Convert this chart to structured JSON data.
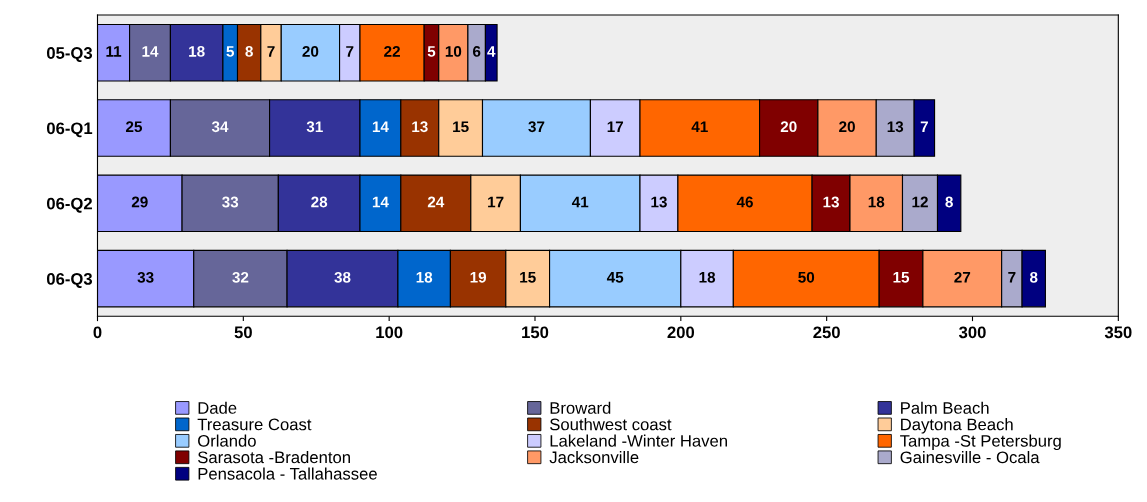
{
  "chart_data": {
    "type": "bar",
    "orientation": "horizontal",
    "stacked": true,
    "data_labels": true,
    "legend": "bottom",
    "grid": false,
    "categories": [
      "05-Q3",
      "06-Q1",
      "06-Q2",
      "06-Q3"
    ],
    "xlim": [
      0,
      350
    ],
    "xticks": [
      0,
      50,
      100,
      150,
      200,
      250,
      300,
      350
    ],
    "series": [
      {
        "name": "Dade",
        "color": "#9999ff",
        "values": [
          11,
          25,
          29,
          33
        ]
      },
      {
        "name": "Broward",
        "color": "#666699",
        "values": [
          14,
          34,
          33,
          32
        ]
      },
      {
        "name": "Palm Beach",
        "color": "#333399",
        "values": [
          18,
          31,
          28,
          38
        ]
      },
      {
        "name": "Treasure Coast",
        "color": "#0066cc",
        "values": [
          5,
          14,
          14,
          18
        ]
      },
      {
        "name": "Southwest coast",
        "color": "#993300",
        "values": [
          8,
          13,
          24,
          19
        ]
      },
      {
        "name": "Daytona Beach",
        "color": "#ffcc99",
        "values": [
          7,
          15,
          17,
          15
        ]
      },
      {
        "name": "Orlando",
        "color": "#99ccff",
        "values": [
          20,
          37,
          41,
          45
        ]
      },
      {
        "name": "Lakeland -Winter Haven",
        "color": "#ccccff",
        "values": [
          7,
          17,
          13,
          18
        ]
      },
      {
        "name": "Tampa -St Petersburg",
        "color": "#ff6600",
        "values": [
          22,
          41,
          46,
          50
        ]
      },
      {
        "name": "Sarasota -Bradenton",
        "color": "#800000",
        "values": [
          5,
          20,
          13,
          15
        ]
      },
      {
        "name": "Jacksonville",
        "color": "#ff9966",
        "values": [
          10,
          20,
          18,
          27
        ]
      },
      {
        "name": "Gainesville - Ocala",
        "color": "#aaaacc",
        "values": [
          6,
          13,
          12,
          7
        ]
      },
      {
        "name": "Pensacola - Tallahassee",
        "color": "#000080",
        "values": [
          4,
          7,
          8,
          8
        ]
      }
    ]
  }
}
